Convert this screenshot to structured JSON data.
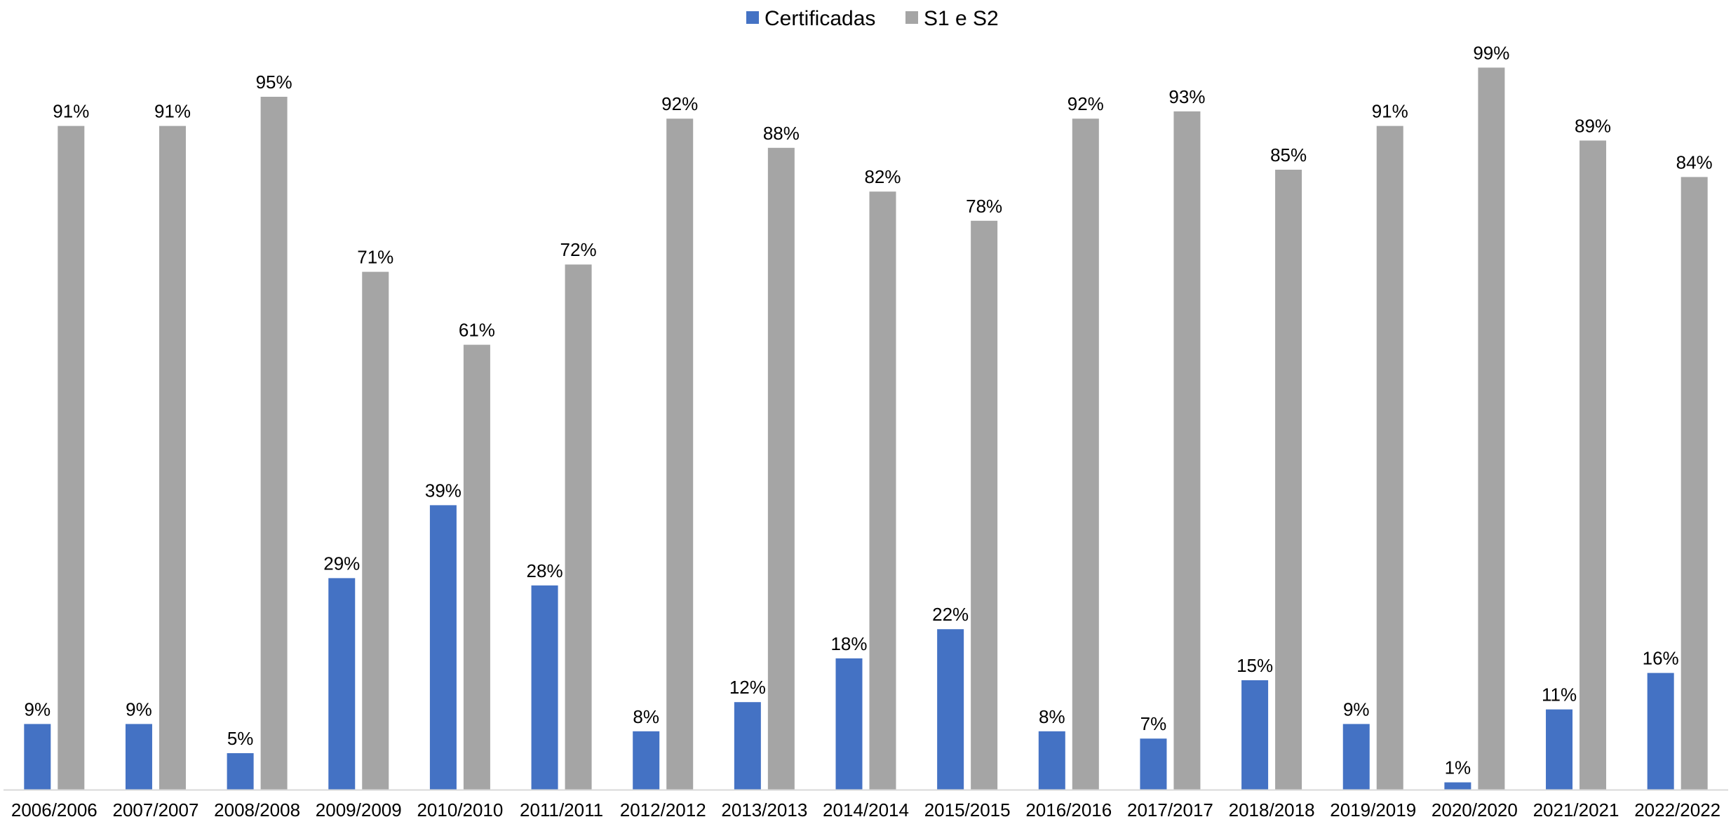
{
  "chart_data": {
    "type": "bar",
    "categories": [
      "2006/2006",
      "2007/2007",
      "2008/2008",
      "2009/2009",
      "2010/2010",
      "2011/2011",
      "2012/2012",
      "2013/2013",
      "2014/2014",
      "2015/2015",
      "2016/2016",
      "2017/2017",
      "2018/2018",
      "2019/2019",
      "2020/2020",
      "2021/2021",
      "2022/2022"
    ],
    "series": [
      {
        "name": "Certificadas",
        "color": "#4472C4",
        "values": [
          9,
          9,
          5,
          29,
          39,
          28,
          8,
          12,
          18,
          22,
          8,
          7,
          15,
          9,
          1,
          11,
          16
        ],
        "labels": [
          "9%",
          "9%",
          "5%",
          "29%",
          "39%",
          "28%",
          "8%",
          "12%",
          "18%",
          "22%",
          "8%",
          "7%",
          "15%",
          "9%",
          "1%",
          "11%",
          "16%"
        ]
      },
      {
        "name": "S1 e S2",
        "color": "#A5A5A5",
        "values": [
          91,
          91,
          95,
          71,
          61,
          72,
          92,
          88,
          82,
          78,
          92,
          93,
          85,
          91,
          99,
          89,
          84
        ],
        "labels": [
          "91%",
          "91%",
          "95%",
          "71%",
          "61%",
          "72%",
          "92%",
          "88%",
          "82%",
          "78%",
          "92%",
          "93%",
          "85%",
          "91%",
          "99%",
          "89%",
          "84%"
        ]
      }
    ],
    "ylim": [
      0,
      100
    ],
    "grid": false,
    "legend": "top-center",
    "data_labels": true
  }
}
